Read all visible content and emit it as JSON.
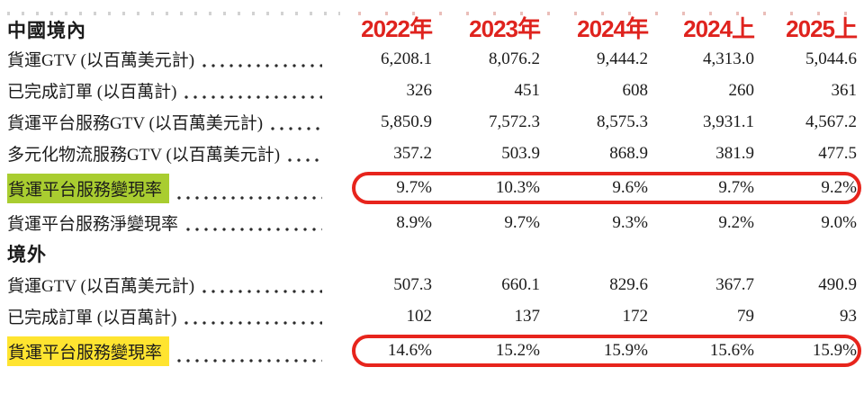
{
  "page": {
    "background": "#ffffff"
  },
  "colors": {
    "year_header_red": "#df231e",
    "circle_red": "#e7241c",
    "highlight_green": "#a9cd30",
    "highlight_yellow": "#ffe430",
    "text": "#1b1b1b"
  },
  "table": {
    "columns": [
      "2022年",
      "2023年",
      "2024年",
      "2024上",
      "2025上"
    ],
    "sections": [
      {
        "title": "中國境內",
        "rows": [
          {
            "label": "貨運GTV (以百萬美元計)",
            "values": [
              "6,208.1",
              "8,076.2",
              "9,444.2",
              "4,313.0",
              "5,044.6"
            ],
            "highlight": "none",
            "circled": false
          },
          {
            "label": "已完成訂單 (以百萬計)",
            "values": [
              "326",
              "451",
              "608",
              "260",
              "361"
            ],
            "highlight": "none",
            "circled": false
          },
          {
            "label": "貨運平台服務GTV (以百萬美元計)",
            "values": [
              "5,850.9",
              "7,572.3",
              "8,575.3",
              "3,931.1",
              "4,567.2"
            ],
            "highlight": "none",
            "circled": false
          },
          {
            "label": "多元化物流服務GTV (以百萬美元計)",
            "values": [
              "357.2",
              "503.9",
              "868.9",
              "381.9",
              "477.5"
            ],
            "highlight": "none",
            "circled": false
          },
          {
            "label": "貨運平台服務變現率",
            "values": [
              "9.7%",
              "10.3%",
              "9.6%",
              "9.7%",
              "9.2%"
            ],
            "highlight": "green",
            "circled": true
          },
          {
            "label": "貨運平台服務淨變現率",
            "values": [
              "8.9%",
              "9.7%",
              "9.3%",
              "9.2%",
              "9.0%"
            ],
            "highlight": "none",
            "circled": false
          }
        ]
      },
      {
        "title": "境外",
        "rows": [
          {
            "label": "貨運GTV (以百萬美元計)",
            "values": [
              "507.3",
              "660.1",
              "829.6",
              "367.7",
              "490.9"
            ],
            "highlight": "none",
            "circled": false
          },
          {
            "label": "已完成訂單 (以百萬計)",
            "values": [
              "102",
              "137",
              "172",
              "79",
              "93"
            ],
            "highlight": "none",
            "circled": false
          },
          {
            "label": "貨運平台服務變現率",
            "values": [
              "14.6%",
              "15.2%",
              "15.9%",
              "15.6%",
              "15.9%"
            ],
            "highlight": "yellow",
            "circled": true
          }
        ]
      }
    ]
  }
}
